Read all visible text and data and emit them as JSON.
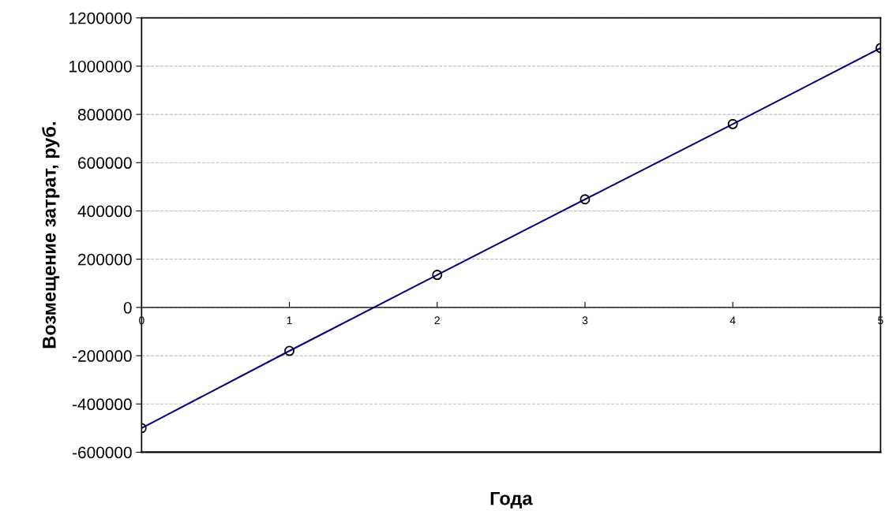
{
  "chart_data": {
    "type": "line",
    "xlabel": "Года",
    "ylabel": "Возмещение затрат, руб.",
    "x": [
      0,
      1,
      2,
      3,
      4,
      5
    ],
    "series": [
      {
        "color": "#000080",
        "values": [
          -500000,
          -180000,
          135000,
          448000,
          760000,
          1075000
        ]
      }
    ],
    "marker": "circle",
    "line_style": "solid",
    "xlim": [
      0,
      5
    ],
    "xticks": [
      0,
      1,
      2,
      3,
      4,
      5
    ],
    "ylim": [
      -600000,
      1200000
    ],
    "yticks": [
      -600000,
      -400000,
      -200000,
      0,
      200000,
      400000,
      600000,
      800000,
      1000000,
      1200000
    ],
    "grid": "y",
    "legend": false
  }
}
